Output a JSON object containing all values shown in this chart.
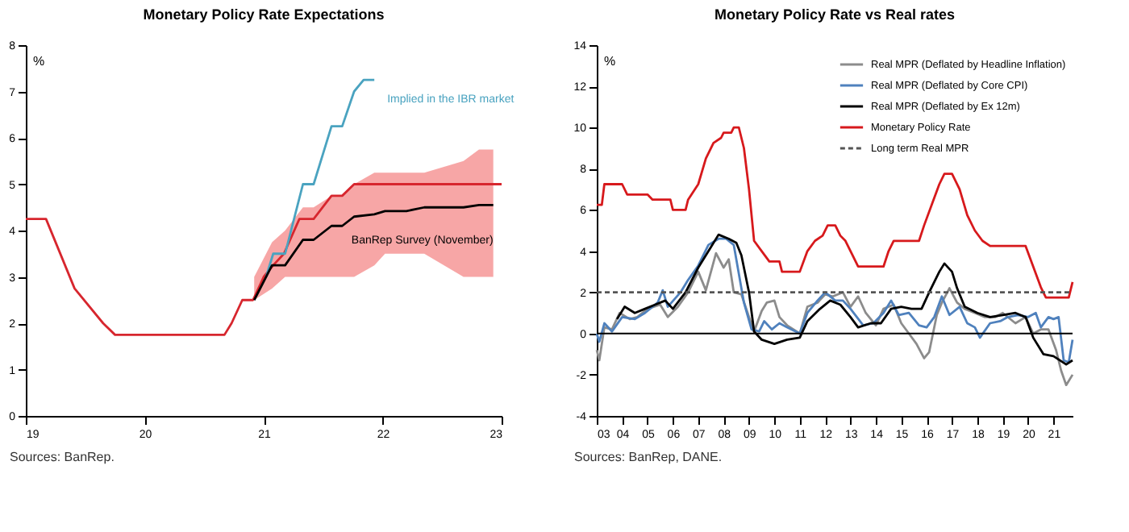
{
  "chart_data": [
    {
      "type": "line",
      "title": "Monetary Policy Rate Expectations",
      "ylabel": "%",
      "annotations": [
        "Sources: BanRep."
      ],
      "xlim": [
        2019,
        2023
      ],
      "xticks": [
        {
          "value": 2019,
          "label": "19"
        },
        {
          "value": 2020,
          "label": "20"
        },
        {
          "value": 2021,
          "label": "21"
        },
        {
          "value": 2022,
          "label": "22"
        },
        {
          "value": 2023,
          "label": "23"
        }
      ],
      "ylim": [
        0,
        8
      ],
      "yticks": [
        0,
        1,
        2,
        3,
        4,
        5,
        6,
        7,
        8
      ],
      "grid": false,
      "legend": false,
      "line_style": "solid",
      "marker": "none",
      "series": [
        {
          "color": "#d7262e",
          "x": [
            2019,
            2019.17,
            2019.41,
            2019.65,
            2019.75,
            2020.67,
            2020.73,
            2020.82,
            2020.91,
            2021.0,
            2021.08,
            2021.17,
            2021.3,
            2021.42,
            2021.57,
            2021.66,
            2021.76,
            2023
          ],
          "values": [
            4.25,
            4.25,
            2.75,
            2.0,
            1.75,
            1.75,
            2.0,
            2.5,
            2.5,
            3.0,
            3.25,
            3.5,
            4.25,
            4.25,
            4.75,
            4.75,
            5.0,
            5.0
          ]
        },
        {
          "name": "Implied in the IBR market",
          "color": "#4aa3c0",
          "x": [
            2021.02,
            2021.08,
            2021.18,
            2021.33,
            2021.42,
            2021.57,
            2021.66,
            2021.76,
            2021.84,
            2021.93
          ],
          "values": [
            3.0,
            3.5,
            3.5,
            5.0,
            5.0,
            6.25,
            6.25,
            7.0,
            7.25,
            7.25
          ]
        },
        {
          "name": "BanRep Survey (November)",
          "color": "#000000",
          "x": [
            2020.92,
            2021.07,
            2021.18,
            2021.33,
            2021.42,
            2021.57,
            2021.66,
            2021.76,
            2021.93,
            2022.02,
            2022.2,
            2022.35,
            2022.68,
            2022.81,
            2022.93
          ],
          "values": [
            2.5,
            3.25,
            3.25,
            3.8,
            3.8,
            4.1,
            4.1,
            4.3,
            4.35,
            4.42,
            4.42,
            4.5,
            4.5,
            4.55,
            4.55
          ],
          "lower": [
            2.5,
            2.75,
            3.0,
            3.0,
            3.0,
            3.0,
            3.0,
            3.0,
            3.25,
            3.5,
            3.5,
            3.5,
            3.0,
            3.0,
            3.0
          ],
          "upper": [
            3.0,
            3.75,
            4.0,
            4.5,
            4.5,
            4.75,
            4.75,
            5.0,
            5.25,
            5.25,
            5.25,
            5.25,
            5.5,
            5.75,
            5.75
          ]
        }
      ]
    },
    {
      "type": "line",
      "title": "Monetary Policy Rate vs Real rates",
      "ylabel": "%",
      "annotations": [
        "Sources: BanRep, DANE."
      ],
      "xlim": [
        2003,
        2021.75
      ],
      "xticks": [
        {
          "value": 2003,
          "label": "03"
        },
        {
          "value": 2004,
          "label": "04"
        },
        {
          "value": 2005,
          "label": "05"
        },
        {
          "value": 2006,
          "label": "06"
        },
        {
          "value": 2007,
          "label": "07"
        },
        {
          "value": 2008,
          "label": "08"
        },
        {
          "value": 2009,
          "label": "09"
        },
        {
          "value": 2010,
          "label": "10"
        },
        {
          "value": 2011,
          "label": "11"
        },
        {
          "value": 2012,
          "label": "12"
        },
        {
          "value": 2013,
          "label": "13"
        },
        {
          "value": 2014,
          "label": "14"
        },
        {
          "value": 2015,
          "label": "15"
        },
        {
          "value": 2016,
          "label": "16"
        },
        {
          "value": 2017,
          "label": "17"
        },
        {
          "value": 2018,
          "label": "18"
        },
        {
          "value": 2019,
          "label": "19"
        },
        {
          "value": 2020,
          "label": "20"
        },
        {
          "value": 2021,
          "label": "21"
        }
      ],
      "ylim": [
        -4,
        14
      ],
      "yticks": [
        -4,
        -2,
        0,
        2,
        4,
        6,
        8,
        10,
        12,
        14
      ],
      "grid": false,
      "legend": "top right",
      "marker": "none",
      "line_style": "solid",
      "ref_lines": [
        {
          "axis": "y",
          "value": 0,
          "color": "#000000"
        }
      ],
      "series": [
        {
          "name": "Real MPR (Deflated by Headline Inflation)",
          "color": "#8c8c8c",
          "x": [
            2003.0,
            2003.1,
            2003.3,
            2003.6,
            2003.9,
            2004.3,
            2004.6,
            2005.0,
            2005.5,
            2005.8,
            2006.2,
            2006.6,
            2007.0,
            2007.3,
            2007.7,
            2008.0,
            2008.2,
            2008.4,
            2008.7,
            2009.0,
            2009.2,
            2009.5,
            2009.7,
            2010.0,
            2010.2,
            2010.5,
            2011.0,
            2011.3,
            2011.7,
            2012.0,
            2012.3,
            2012.7,
            2013.0,
            2013.3,
            2013.6,
            2014.0,
            2014.3,
            2014.7,
            2015.0,
            2015.3,
            2015.6,
            2015.9,
            2016.1,
            2016.4,
            2016.6,
            2016.9,
            2017.2,
            2017.5,
            2017.9,
            2018.3,
            2018.7,
            2019.0,
            2019.5,
            2019.9,
            2020.2,
            2020.5,
            2020.8,
            2021.1,
            2021.3,
            2021.5,
            2021.75
          ],
          "values": [
            -0.8,
            -1.3,
            0.3,
            0.2,
            1.0,
            0.7,
            0.8,
            1.2,
            1.4,
            0.8,
            1.3,
            2.0,
            3.0,
            2.1,
            3.9,
            3.2,
            3.6,
            2.0,
            1.9,
            0.8,
            0.1,
            1.1,
            1.5,
            1.6,
            0.8,
            0.4,
            0.0,
            1.3,
            1.5,
            1.9,
            1.8,
            2.0,
            1.3,
            1.8,
            1.0,
            0.4,
            1.2,
            1.4,
            0.5,
            0.0,
            -0.5,
            -1.2,
            -0.9,
            0.9,
            1.5,
            2.2,
            1.5,
            1.2,
            1.0,
            0.8,
            0.8,
            1.0,
            0.5,
            0.8,
            0.0,
            0.2,
            0.2,
            -0.8,
            -1.8,
            -2.5,
            -2.0
          ]
        },
        {
          "name": "Real MPR (Deflated by Core CPI)",
          "color": "#4f81bd",
          "x": [
            2003.0,
            2003.1,
            2003.3,
            2003.6,
            2004.0,
            2004.5,
            2004.9,
            2005.4,
            2005.6,
            2005.8,
            2006.3,
            2006.6,
            2007.0,
            2007.4,
            2007.8,
            2008.1,
            2008.4,
            2008.8,
            2009.1,
            2009.4,
            2009.6,
            2009.9,
            2010.2,
            2010.5,
            2011.0,
            2011.3,
            2011.7,
            2012.0,
            2012.4,
            2012.7,
            2013.0,
            2013.5,
            2013.9,
            2014.3,
            2014.6,
            2014.9,
            2015.3,
            2015.7,
            2016.0,
            2016.3,
            2016.6,
            2016.9,
            2017.3,
            2017.6,
            2017.9,
            2018.1,
            2018.5,
            2018.9,
            2019.2,
            2019.6,
            2020.0,
            2020.3,
            2020.5,
            2020.8,
            2021.0,
            2021.2,
            2021.4,
            2021.6,
            2021.75
          ],
          "values": [
            0.0,
            -0.4,
            0.5,
            0.1,
            0.8,
            0.7,
            1.0,
            1.5,
            2.1,
            1.3,
            2.0,
            2.6,
            3.3,
            4.3,
            4.6,
            4.6,
            4.3,
            1.5,
            0.2,
            0.1,
            0.6,
            0.2,
            0.5,
            0.3,
            0.0,
            1.0,
            1.6,
            2.0,
            1.6,
            1.6,
            1.2,
            0.4,
            0.5,
            1.0,
            1.6,
            0.9,
            1.0,
            0.4,
            0.3,
            0.8,
            1.8,
            0.9,
            1.3,
            0.5,
            0.3,
            -0.2,
            0.5,
            0.6,
            0.8,
            0.9,
            0.8,
            1.0,
            0.3,
            0.8,
            0.7,
            0.8,
            -1.3,
            -1.4,
            -0.3
          ]
        },
        {
          "name": "Real MPR (Deflated by Ex 12m)",
          "color": "#000000",
          "x": [
            2003.8,
            2004.1,
            2004.5,
            2004.9,
            2005.3,
            2005.7,
            2006.0,
            2006.5,
            2007.0,
            2007.5,
            2007.8,
            2008.2,
            2008.5,
            2008.7,
            2009.0,
            2009.2,
            2009.5,
            2010.0,
            2010.5,
            2011.0,
            2011.3,
            2011.8,
            2012.2,
            2012.6,
            2013.0,
            2013.3,
            2013.8,
            2014.2,
            2014.6,
            2015.0,
            2015.4,
            2015.8,
            2016.1,
            2016.5,
            2016.7,
            2017.0,
            2017.2,
            2017.5,
            2018.0,
            2018.5,
            2019.0,
            2019.5,
            2019.9,
            2020.2,
            2020.6,
            2021.0,
            2021.5,
            2021.75
          ],
          "values": [
            0.7,
            1.3,
            1.0,
            1.2,
            1.4,
            1.6,
            1.2,
            2.0,
            3.2,
            4.2,
            4.8,
            4.6,
            4.4,
            3.8,
            2.0,
            0.1,
            -0.3,
            -0.5,
            -0.3,
            -0.2,
            0.6,
            1.2,
            1.6,
            1.4,
            0.8,
            0.3,
            0.5,
            0.5,
            1.2,
            1.3,
            1.2,
            1.2,
            2.0,
            3.0,
            3.4,
            3.0,
            2.2,
            1.3,
            1.0,
            0.8,
            0.9,
            1.0,
            0.8,
            -0.2,
            -1.0,
            -1.1,
            -1.5,
            -1.3
          ]
        },
        {
          "name": "Monetary Policy Rate",
          "color": "#d7191c",
          "x": [
            2003.0,
            2003.2,
            2003.3,
            2004.0,
            2004.2,
            2005.0,
            2005.2,
            2005.9,
            2006.0,
            2006.5,
            2006.6,
            2007.0,
            2007.3,
            2007.6,
            2007.9,
            2008.0,
            2008.3,
            2008.4,
            2008.6,
            2008.8,
            2009.0,
            2009.2,
            2009.5,
            2009.8,
            2010.2,
            2010.3,
            2011.0,
            2011.3,
            2011.6,
            2011.9,
            2012.1,
            2012.4,
            2012.6,
            2012.8,
            2013.1,
            2013.3,
            2014.3,
            2014.5,
            2014.7,
            2015.7,
            2015.9,
            2016.2,
            2016.5,
            2016.7,
            2017.0,
            2017.3,
            2017.6,
            2017.9,
            2018.2,
            2018.5,
            2019.9,
            2020.2,
            2020.5,
            2020.7,
            2021.6,
            2021.75
          ],
          "values": [
            6.25,
            6.25,
            7.25,
            7.25,
            6.75,
            6.75,
            6.5,
            6.5,
            6.0,
            6.0,
            6.5,
            7.25,
            8.5,
            9.25,
            9.5,
            9.75,
            9.75,
            10.0,
            10.0,
            9.0,
            7.0,
            4.5,
            4.0,
            3.5,
            3.5,
            3.0,
            3.0,
            4.0,
            4.5,
            4.75,
            5.25,
            5.25,
            4.75,
            4.5,
            3.75,
            3.25,
            3.25,
            4.0,
            4.5,
            4.5,
            5.25,
            6.25,
            7.25,
            7.75,
            7.75,
            7.0,
            5.75,
            5.0,
            4.5,
            4.25,
            4.25,
            3.25,
            2.25,
            1.75,
            1.75,
            2.5
          ]
        },
        {
          "name": "Long term Real MPR",
          "color": "#555555",
          "line_style": "dashed",
          "x": [
            2003,
            2021.75
          ],
          "values": [
            2,
            2
          ]
        }
      ]
    }
  ]
}
